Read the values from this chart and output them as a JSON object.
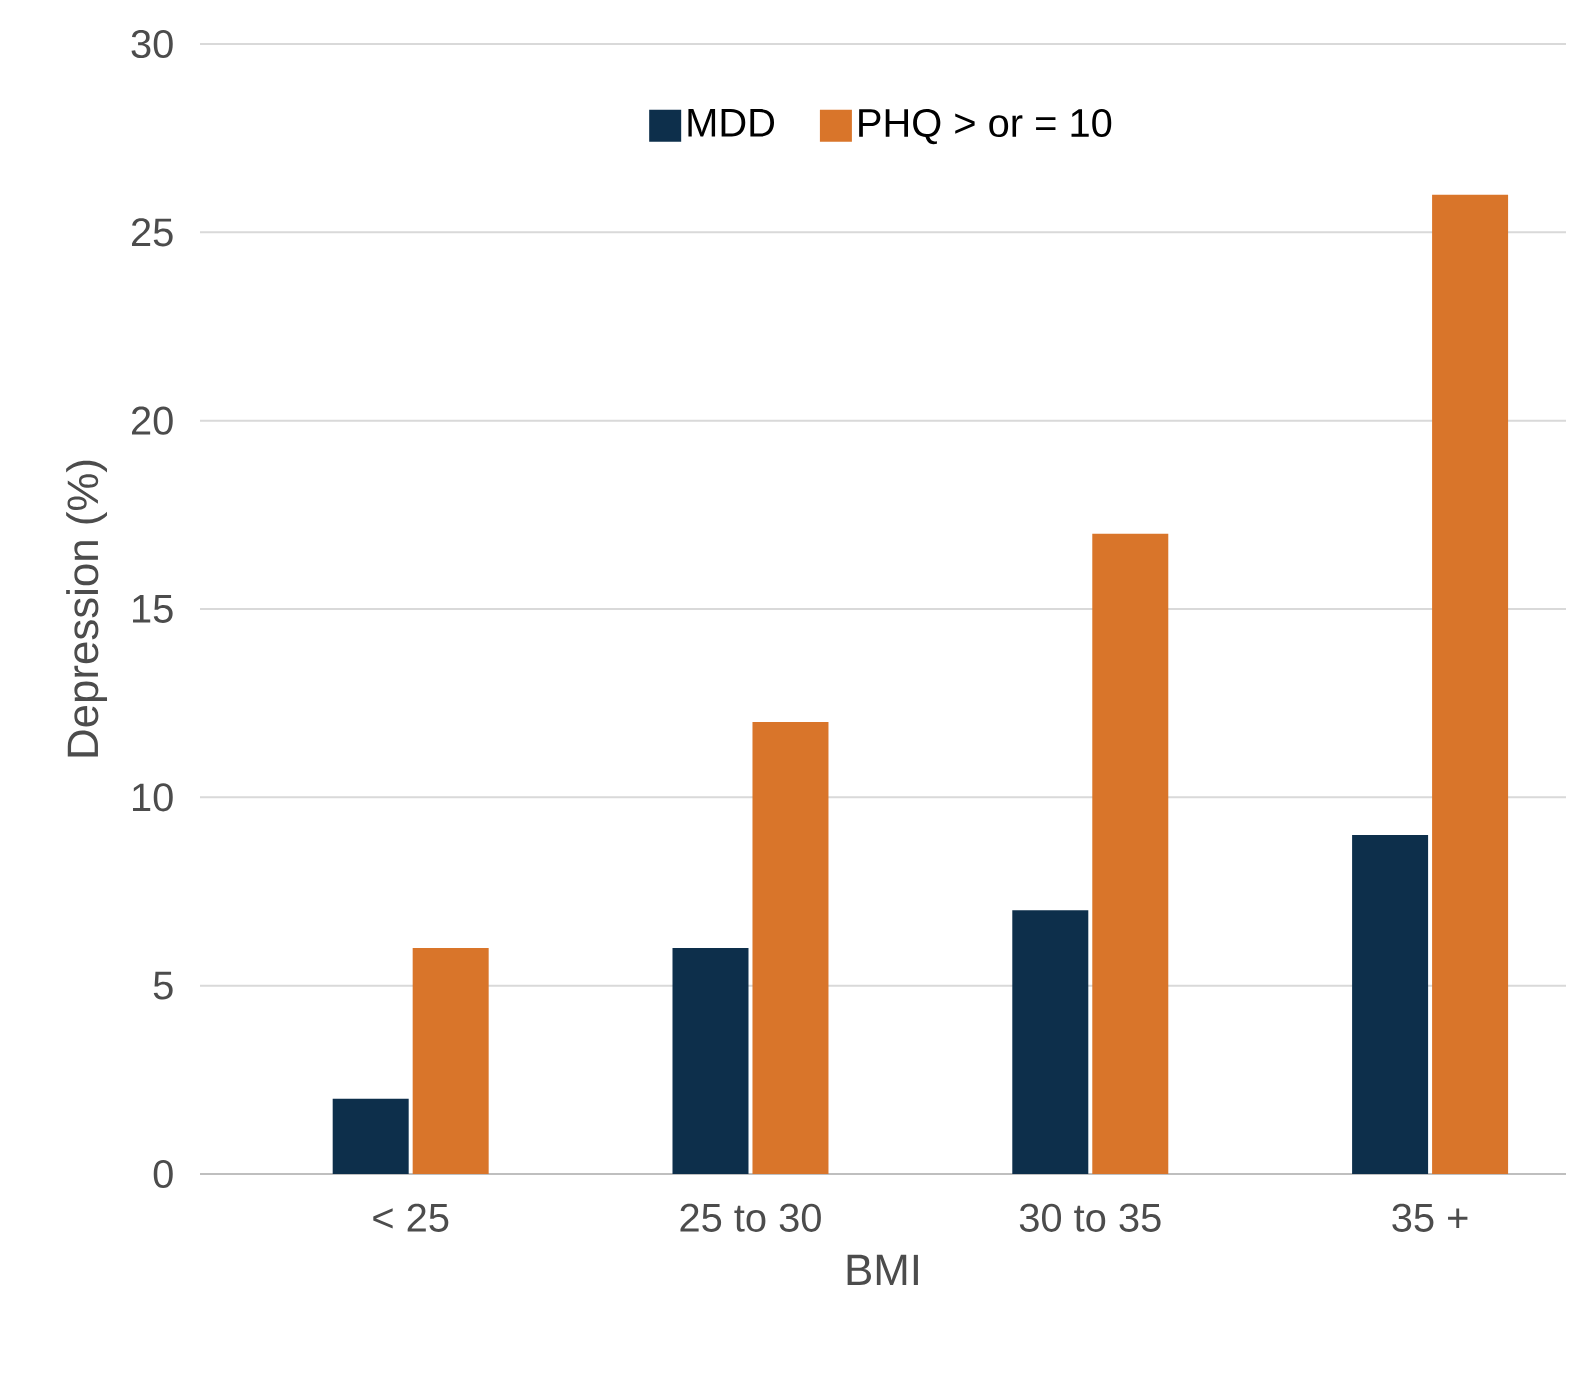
{
  "chart_data": {
    "type": "bar",
    "xlabel": "BMI",
    "ylabel": "Depression (%)",
    "categories": [
      "< 25",
      "25 to 30",
      "30 to 35",
      "35 +"
    ],
    "series": [
      {
        "name": "MDD",
        "color": "#0d2f4b",
        "values": [
          2,
          6,
          7,
          9
        ]
      },
      {
        "name": "PHQ > or = 10",
        "color": "#d9752a",
        "values": [
          6,
          12,
          17,
          26
        ]
      }
    ],
    "ylim": [
      0,
      30
    ],
    "yticks": [
      0,
      5,
      10,
      15,
      20,
      25,
      30
    ],
    "grid": "y",
    "legend": "top"
  }
}
